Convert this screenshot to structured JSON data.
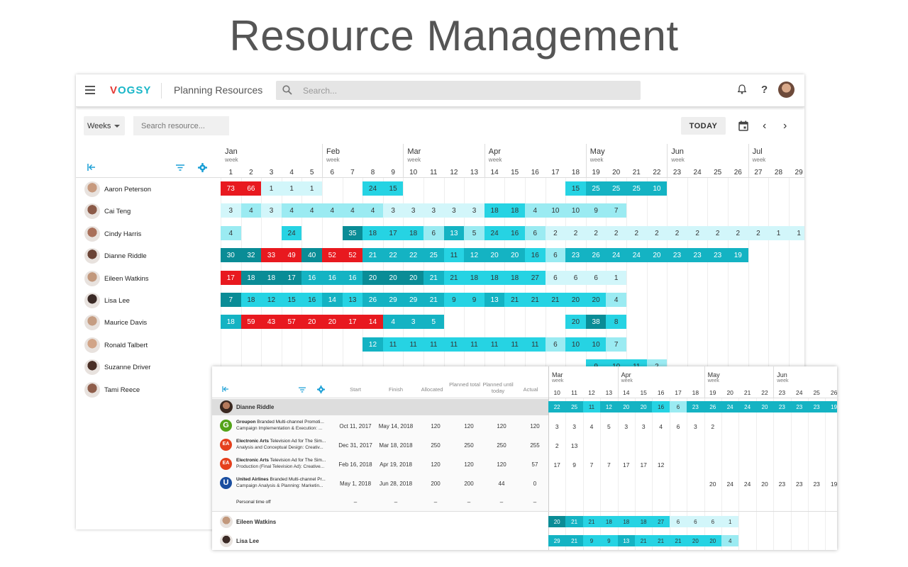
{
  "hero_title": "Resource Management",
  "app": {
    "logo": "VOGSY",
    "title": "Planning Resources",
    "search_placeholder": "Search...",
    "help": "?"
  },
  "toolbar": {
    "period_select": "Weeks",
    "resource_search_placeholder": "Search resource...",
    "today_label": "TODAY"
  },
  "timeline": {
    "week_caption": "week",
    "months": [
      {
        "label": "Jan",
        "start_week": 0
      },
      {
        "label": "Feb",
        "start_week": 5
      },
      {
        "label": "Mar",
        "start_week": 9
      },
      {
        "label": "Apr",
        "start_week": 13
      },
      {
        "label": "May",
        "start_week": 18
      },
      {
        "label": "Jun",
        "start_week": 22
      },
      {
        "label": "Jul",
        "start_week": 26
      }
    ],
    "weeks": [
      "1",
      "2",
      "3",
      "4",
      "5",
      "6",
      "7",
      "8",
      "9",
      "10",
      "11",
      "12",
      "13",
      "14",
      "15",
      "16",
      "17",
      "18",
      "19",
      "20",
      "21",
      "22",
      "23",
      "24",
      "25",
      "26",
      "27",
      "28",
      "29"
    ]
  },
  "resources": [
    {
      "name": "Aaron Peterson",
      "avatar": "#c79a7e",
      "cells": [
        [
          "73",
          "red"
        ],
        [
          "66",
          "red"
        ],
        [
          "1",
          "pale"
        ],
        [
          "1",
          "pale"
        ],
        [
          "1",
          "pale"
        ],
        null,
        null,
        [
          "24",
          "cyan"
        ],
        [
          "15",
          "cyan"
        ],
        null,
        null,
        null,
        null,
        null,
        null,
        null,
        null,
        [
          "15",
          "cyan"
        ],
        [
          "25",
          "med"
        ],
        [
          "25",
          "med"
        ],
        [
          "25",
          "med"
        ],
        [
          "10",
          "med"
        ]
      ]
    },
    {
      "name": "Cai Teng",
      "avatar": "#8b5a48",
      "cells": [
        [
          "3",
          "pale"
        ],
        [
          "4",
          "light"
        ],
        [
          "3",
          "pale"
        ],
        [
          "4",
          "light"
        ],
        [
          "4",
          "light"
        ],
        [
          "4",
          "light"
        ],
        [
          "4",
          "light"
        ],
        [
          "4",
          "light"
        ],
        [
          "3",
          "pale"
        ],
        [
          "3",
          "pale"
        ],
        [
          "3",
          "pale"
        ],
        [
          "3",
          "pale"
        ],
        [
          "3",
          "pale"
        ],
        [
          "18",
          "cyan"
        ],
        [
          "18",
          "cyan"
        ],
        [
          "4",
          "light"
        ],
        [
          "10",
          "light"
        ],
        [
          "10",
          "light"
        ],
        [
          "9",
          "light"
        ],
        [
          "7",
          "light"
        ]
      ]
    },
    {
      "name": "Cindy Harris",
      "avatar": "#a9705a",
      "cells": [
        [
          "4",
          "light"
        ],
        null,
        null,
        [
          "24",
          "cyan"
        ],
        null,
        null,
        [
          "35",
          "dark"
        ],
        [
          "18",
          "cyan"
        ],
        [
          "17",
          "cyan"
        ],
        [
          "18",
          "cyan"
        ],
        [
          "6",
          "light"
        ],
        [
          "13",
          "med"
        ],
        [
          "5",
          "light"
        ],
        [
          "24",
          "cyan"
        ],
        [
          "16",
          "cyan"
        ],
        [
          "6",
          "light"
        ],
        [
          "2",
          "pale"
        ],
        [
          "2",
          "pale"
        ],
        [
          "2",
          "pale"
        ],
        [
          "2",
          "pale"
        ],
        [
          "2",
          "pale"
        ],
        [
          "2",
          "pale"
        ],
        [
          "2",
          "pale"
        ],
        [
          "2",
          "pale"
        ],
        [
          "2",
          "pale"
        ],
        [
          "2",
          "pale"
        ],
        [
          "2",
          "pale"
        ],
        [
          "1",
          "pale"
        ],
        [
          "1",
          "pale"
        ]
      ]
    },
    {
      "name": "Dianne Riddle",
      "avatar": "#6b4436",
      "cells": [
        [
          "30",
          "dark"
        ],
        [
          "32",
          "dark"
        ],
        [
          "33",
          "red"
        ],
        [
          "49",
          "red"
        ],
        [
          "40",
          "dark"
        ],
        [
          "52",
          "red"
        ],
        [
          "52",
          "red"
        ],
        [
          "21",
          "med"
        ],
        [
          "22",
          "med"
        ],
        [
          "22",
          "med"
        ],
        [
          "25",
          "med"
        ],
        [
          "11",
          "cyan"
        ],
        [
          "12",
          "med"
        ],
        [
          "20",
          "med"
        ],
        [
          "20",
          "med"
        ],
        [
          "16",
          "cyan"
        ],
        [
          "6",
          "light"
        ],
        [
          "23",
          "med"
        ],
        [
          "26",
          "med"
        ],
        [
          "24",
          "med"
        ],
        [
          "24",
          "med"
        ],
        [
          "20",
          "med"
        ],
        [
          "23",
          "med"
        ],
        [
          "23",
          "med"
        ],
        [
          "23",
          "med"
        ],
        [
          "19",
          "med"
        ]
      ]
    },
    {
      "name": "Eileen Watkins",
      "avatar": "#c2987c",
      "cells": [
        [
          "17",
          "red"
        ],
        [
          "18",
          "dark"
        ],
        [
          "18",
          "dark"
        ],
        [
          "17",
          "dark"
        ],
        [
          "16",
          "med"
        ],
        [
          "16",
          "med"
        ],
        [
          "16",
          "med"
        ],
        [
          "20",
          "dark"
        ],
        [
          "20",
          "dark"
        ],
        [
          "20",
          "dark"
        ],
        [
          "21",
          "med"
        ],
        [
          "21",
          "cyan"
        ],
        [
          "18",
          "cyan"
        ],
        [
          "18",
          "cyan"
        ],
        [
          "18",
          "cyan"
        ],
        [
          "27",
          "cyan"
        ],
        [
          "6",
          "pale"
        ],
        [
          "6",
          "pale"
        ],
        [
          "6",
          "pale"
        ],
        [
          "1",
          "pale"
        ]
      ]
    },
    {
      "name": "Lisa Lee",
      "avatar": "#3b2a26",
      "cells": [
        [
          "7",
          "dark"
        ],
        [
          "18",
          "cyan"
        ],
        [
          "12",
          "cyan"
        ],
        [
          "15",
          "cyan"
        ],
        [
          "16",
          "cyan"
        ],
        [
          "14",
          "med"
        ],
        [
          "13",
          "cyan"
        ],
        [
          "26",
          "med"
        ],
        [
          "29",
          "med"
        ],
        [
          "29",
          "med"
        ],
        [
          "21",
          "med"
        ],
        [
          "9",
          "cyan"
        ],
        [
          "9",
          "cyan"
        ],
        [
          "13",
          "med"
        ],
        [
          "21",
          "cyan"
        ],
        [
          "21",
          "cyan"
        ],
        [
          "21",
          "cyan"
        ],
        [
          "20",
          "cyan"
        ],
        [
          "20",
          "cyan"
        ],
        [
          "4",
          "light"
        ]
      ]
    },
    {
      "name": "Maurice Davis",
      "avatar": "#c59d82",
      "cells": [
        [
          "18",
          "med"
        ],
        [
          "59",
          "red"
        ],
        [
          "43",
          "red"
        ],
        [
          "57",
          "red"
        ],
        [
          "20",
          "red"
        ],
        [
          "20",
          "red"
        ],
        [
          "17",
          "red"
        ],
        [
          "14",
          "red"
        ],
        [
          "4",
          "med"
        ],
        [
          "3",
          "med"
        ],
        [
          "5",
          "med"
        ],
        null,
        null,
        null,
        null,
        null,
        null,
        [
          "20",
          "cyan"
        ],
        [
          "38",
          "dark"
        ],
        [
          "8",
          "cyan"
        ]
      ]
    },
    {
      "name": "Ronald Talbert",
      "avatar": "#d1a487",
      "cells": [
        null,
        null,
        null,
        null,
        null,
        null,
        null,
        [
          "12",
          "med"
        ],
        [
          "11",
          "cyan"
        ],
        [
          "11",
          "cyan"
        ],
        [
          "11",
          "cyan"
        ],
        [
          "11",
          "cyan"
        ],
        [
          "11",
          "cyan"
        ],
        [
          "11",
          "cyan"
        ],
        [
          "11",
          "cyan"
        ],
        [
          "11",
          "cyan"
        ],
        [
          "6",
          "light"
        ],
        [
          "10",
          "cyan"
        ],
        [
          "10",
          "cyan"
        ],
        [
          "7",
          "light"
        ]
      ]
    },
    {
      "name": "Suzanne Driver",
      "avatar": "#4a2f26",
      "cells": [
        null,
        null,
        null,
        null,
        null,
        null,
        null,
        null,
        null,
        null,
        null,
        null,
        null,
        null,
        null,
        null,
        null,
        null,
        [
          "9",
          "cyan"
        ],
        [
          "10",
          "cyan"
        ],
        [
          "11",
          "cyan"
        ],
        [
          "2",
          "light"
        ]
      ]
    },
    {
      "name": "Tami Reece",
      "avatar": "#8f5e4b",
      "cells": []
    }
  ],
  "detail": {
    "headers": {
      "start": "Start",
      "finish": "Finish",
      "allocated": "Allocated",
      "planned_total": "Planned total",
      "planned_until_today": "Planned until today",
      "actual": "Actual"
    },
    "months": [
      {
        "label": "Mar",
        "start_week": 0
      },
      {
        "label": "Apr",
        "start_week": 4
      },
      {
        "label": "May",
        "start_week": 9
      },
      {
        "label": "Jun",
        "start_week": 13
      }
    ],
    "weeks": [
      "10",
      "11",
      "12",
      "13",
      "14",
      "15",
      "16",
      "17",
      "18",
      "19",
      "20",
      "21",
      "22",
      "23",
      "24",
      "25",
      "26"
    ],
    "selected_resource": {
      "name": "Dianne Riddle",
      "cells": [
        [
          "22",
          "med"
        ],
        [
          "25",
          "med"
        ],
        [
          "11",
          "cyan"
        ],
        [
          "12",
          "med"
        ],
        [
          "20",
          "med"
        ],
        [
          "20",
          "med"
        ],
        [
          "16",
          "cyan"
        ],
        [
          "6",
          "light"
        ],
        [
          "23",
          "med"
        ],
        [
          "26",
          "med"
        ],
        [
          "24",
          "med"
        ],
        [
          "24",
          "med"
        ],
        [
          "20",
          "med"
        ],
        [
          "23",
          "med"
        ],
        [
          "23",
          "med"
        ],
        [
          "23",
          "med"
        ],
        [
          "19",
          "med"
        ]
      ]
    },
    "projects": [
      {
        "client": "Groupon",
        "logo_color": "#53a318",
        "logo_letter": "G",
        "line1": "Branded Multi-channel Promoti...",
        "line2": "Campaign Implementation & Execution: ...",
        "start": "Oct 11, 2017",
        "finish": "May 14, 2018",
        "allocated": "120",
        "planned_total": "120",
        "planned_until_today": "120",
        "actual": "120",
        "weeks": [
          "3",
          "3",
          "4",
          "5",
          "3",
          "3",
          "4",
          "6",
          "3",
          "2",
          "",
          "",
          "",
          "",
          "",
          "",
          ""
        ]
      },
      {
        "client": "Electronic Arts",
        "logo_color": "#e5401d",
        "logo_letter": "EA",
        "line1": "Television Ad for The Sim...",
        "line2": "Analysis and Conceptual Design: Creativ...",
        "start": "Dec 31, 2017",
        "finish": "Mar 18, 2018",
        "allocated": "250",
        "planned_total": "250",
        "planned_until_today": "250",
        "actual": "255",
        "weeks": [
          "2",
          "13",
          "",
          "",
          "",
          "",
          "",
          "",
          "",
          "",
          "",
          "",
          "",
          "",
          "",
          "",
          ""
        ]
      },
      {
        "client": "Electronic Arts",
        "logo_color": "#e5401d",
        "logo_letter": "EA",
        "line1": "Television Ad for The Sim...",
        "line2": "Production (Final Television Ad): Creative...",
        "start": "Feb 16, 2018",
        "finish": "Apr 19, 2018",
        "allocated": "120",
        "planned_total": "120",
        "planned_until_today": "120",
        "actual": "57",
        "weeks": [
          "17",
          "9",
          "7",
          "7",
          "17",
          "17",
          "12",
          "",
          "",
          "",
          "",
          "",
          "",
          "",
          "",
          "",
          ""
        ]
      },
      {
        "client": "United Airlines",
        "logo_color": "#1a4ea0",
        "logo_letter": "U",
        "line1": "Branded Multi-channel Pr...",
        "line2": "Campaign Analysis & Planning: Marketin...",
        "start": "May 1, 2018",
        "finish": "Jun 28, 2018",
        "allocated": "200",
        "planned_total": "200",
        "planned_until_today": "44",
        "actual": "0",
        "weeks": [
          "",
          "",
          "",
          "",
          "",
          "",
          "",
          "",
          "",
          "20",
          "24",
          "24",
          "20",
          "23",
          "23",
          "23",
          "19"
        ]
      }
    ],
    "personal": {
      "label": "Personal time off",
      "dash": "–"
    },
    "other_resources": [
      {
        "name": "Eileen Watkins",
        "avatar": "#c2987c",
        "cells": [
          [
            "20",
            "dark"
          ],
          [
            "21",
            "med"
          ],
          [
            "21",
            "cyan"
          ],
          [
            "18",
            "cyan"
          ],
          [
            "18",
            "cyan"
          ],
          [
            "18",
            "cyan"
          ],
          [
            "27",
            "cyan"
          ],
          [
            "6",
            "pale"
          ],
          [
            "6",
            "pale"
          ],
          [
            "6",
            "pale"
          ],
          [
            "1",
            "pale"
          ]
        ]
      },
      {
        "name": "Lisa Lee",
        "avatar": "#3b2a26",
        "cells": [
          [
            "29",
            "med"
          ],
          [
            "21",
            "med"
          ],
          [
            "9",
            "cyan"
          ],
          [
            "9",
            "cyan"
          ],
          [
            "13",
            "med"
          ],
          [
            "21",
            "cyan"
          ],
          [
            "21",
            "cyan"
          ],
          [
            "21",
            "cyan"
          ],
          [
            "20",
            "cyan"
          ],
          [
            "20",
            "cyan"
          ],
          [
            "4",
            "light"
          ]
        ]
      }
    ]
  }
}
